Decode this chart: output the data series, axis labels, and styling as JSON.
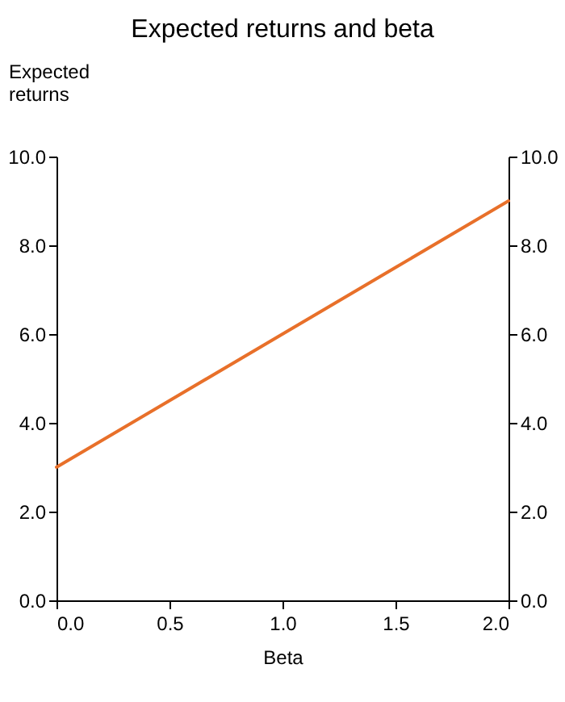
{
  "chart_data": {
    "type": "line",
    "title": "Expected returns and beta",
    "xlabel": "Beta",
    "ylabel": "Expected returns",
    "x": [
      0,
      0.5,
      1,
      1.5,
      2
    ],
    "series": [
      {
        "color": "#e8702a",
        "values": [
          3,
          4.5,
          6,
          7.5,
          9
        ]
      }
    ],
    "xlim": [
      0,
      2
    ],
    "xticks": [
      {
        "value": 0,
        "label": "0.0"
      },
      {
        "value": 0.5,
        "label": "0.5"
      },
      {
        "value": 1,
        "label": "1.0"
      },
      {
        "value": 1.5,
        "label": "1.5"
      },
      {
        "value": 2,
        "label": "2.0"
      }
    ],
    "ylim": [
      0,
      10
    ],
    "yticks": [
      {
        "value": 0,
        "label": "0.0"
      },
      {
        "value": 2,
        "label": "2.0"
      },
      {
        "value": 4,
        "label": "4.0"
      },
      {
        "value": 6,
        "label": "6.0"
      },
      {
        "value": 8,
        "label": "8.0"
      },
      {
        "value": 10,
        "label": "10.0"
      }
    ],
    "y2lim": [
      0,
      10
    ],
    "y2ticks": [
      {
        "value": 0,
        "label": "0.0"
      },
      {
        "value": 2,
        "label": "2.0"
      },
      {
        "value": 4,
        "label": "4.0"
      },
      {
        "value": 6,
        "label": "6.0"
      },
      {
        "value": 8,
        "label": "8.0"
      },
      {
        "value": 10,
        "label": "10.0"
      }
    ],
    "grid": false
  }
}
